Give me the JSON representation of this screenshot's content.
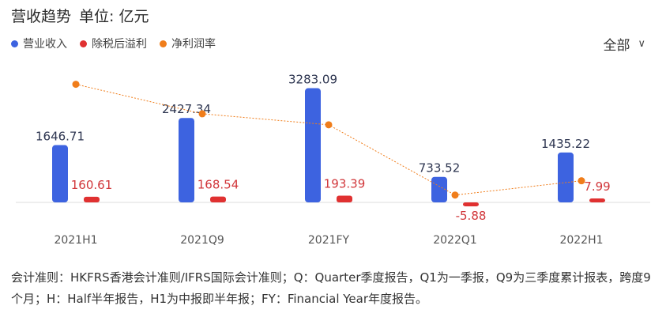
{
  "header": {
    "title": "营收趋势",
    "unit": "单位: 亿元"
  },
  "filter": {
    "label": "全部"
  },
  "colors": {
    "revenue": "#3d63e0",
    "profit": "#e03131",
    "margin": "#f07d1a"
  },
  "legend": [
    {
      "name": "营业收入",
      "color": "#3d63e0"
    },
    {
      "name": "除税后溢利",
      "color": "#e03131"
    },
    {
      "name": "净利润率",
      "color": "#f07d1a"
    }
  ],
  "chart_data": {
    "type": "bar",
    "categories": [
      "2021H1",
      "2021Q9",
      "2021FY",
      "2022Q1",
      "2022H1"
    ],
    "series": [
      {
        "name": "营业收入",
        "type": "bar",
        "values": [
          1646.71,
          2427.34,
          3283.09,
          733.52,
          1435.22
        ]
      },
      {
        "name": "除税后溢利",
        "type": "bar",
        "values": [
          160.61,
          168.54,
          193.39,
          -5.88,
          7.99
        ]
      },
      {
        "name": "净利润率",
        "type": "line",
        "values": [
          9.75,
          6.94,
          5.89,
          -0.8,
          0.56
        ]
      }
    ],
    "labels": {
      "营业收入": [
        "1646.71",
        "2427.34",
        "3283.09",
        "733.52",
        "1435.22"
      ],
      "除税后溢利": [
        "160.61",
        "168.54",
        "193.39",
        "-5.88",
        "7.99"
      ]
    },
    "ylim_bar": [
      0,
      3500
    ],
    "ylim_line": [
      -1.5,
      11
    ],
    "grid": false,
    "legend_position": "top-left"
  },
  "footnote": "会计准则：HKFRS香港会计准则/IFRS国际会计准则；Q：Quarter季度报告，Q1为一季报，Q9为三季度累计报表，跨度9个月；H：Half半年报告，H1为中报即半年报；FY：Financial Year年度报告。"
}
